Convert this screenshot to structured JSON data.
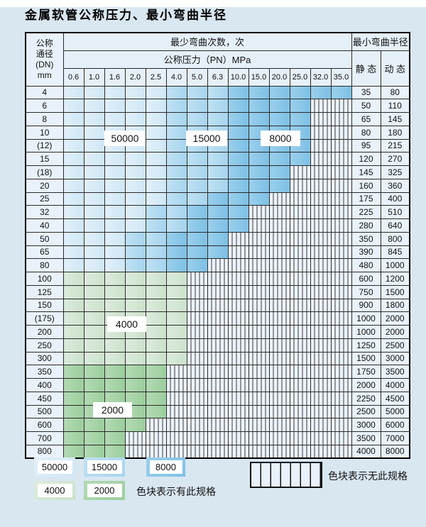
{
  "title": "金属软管公称压力、最小弯曲半径",
  "colors": {
    "page_bg": "#d9e7f1",
    "label_cell_bg": "#e9f2fa",
    "header_bg": "#e6f0f8",
    "hatch_bg": "#ecf3fa",
    "hatch_line": "#3a3a3a",
    "shades": {
      "L": [
        "#e2f0fa",
        "#cfe7f5"
      ],
      "M": [
        "#c0e1f3",
        "#a6d5ee"
      ],
      "D": [
        "#9bd0ec",
        "#7ec0e5"
      ],
      "g": [
        "#dcebdc",
        "#cce2cc"
      ],
      "G": [
        "#b4dab4",
        "#9bce9d"
      ]
    }
  },
  "table": {
    "header": {
      "dn_lines": "公称\n通径\n(DN)\nmm",
      "bend_times": "最少弯曲次数，次",
      "pressure": "公称压力（PN）MPa",
      "radius": "最小弯曲半径",
      "static": "静 态",
      "dynamic": "动 态",
      "pressure_values": [
        "0.6",
        "1.0",
        "1.6",
        "2.0",
        "2.5",
        "4.0",
        "5.0",
        "6.3",
        "10.0",
        "15.0",
        "20.0",
        "25.0",
        "32.0",
        "35.0"
      ]
    },
    "rows": [
      {
        "dn": "4",
        "cells": "LLLLLMMMDDDDDD",
        "static": "35",
        "dynamic": "80"
      },
      {
        "dn": "6",
        "cells": "LLLLLMMMDDDDxx",
        "static": "50",
        "dynamic": "110"
      },
      {
        "dn": "8",
        "cells": "LLLLLMMMDDDDxx",
        "static": "65",
        "dynamic": "145"
      },
      {
        "dn": "10",
        "cells": "LLLLLMMMDDDDxx",
        "static": "80",
        "dynamic": "180"
      },
      {
        "dn": "(12)",
        "cells": "LLLLLMMMDDDDxx",
        "static": "95",
        "dynamic": "215"
      },
      {
        "dn": "15",
        "cells": "LLLLLMMMDDDDxx",
        "static": "120",
        "dynamic": "270"
      },
      {
        "dn": "(18)",
        "cells": "LLLLLMMMDDDxxx",
        "static": "145",
        "dynamic": "325"
      },
      {
        "dn": "20",
        "cells": "LLLLLMMMDDDxxx",
        "static": "160",
        "dynamic": "360"
      },
      {
        "dn": "25",
        "cells": "LLLLLMMDDDxxxx",
        "static": "175",
        "dynamic": "400"
      },
      {
        "dn": "32",
        "cells": "LLLLMMDDDxxxxx",
        "static": "225",
        "dynamic": "510"
      },
      {
        "dn": "40",
        "cells": "LLLLMMDDDxxxxx",
        "static": "280",
        "dynamic": "640"
      },
      {
        "dn": "50",
        "cells": "LLLMMDDDxxxxxx",
        "static": "350",
        "dynamic": "800"
      },
      {
        "dn": "65",
        "cells": "LLLMMDDDxxxxxx",
        "static": "390",
        "dynamic": "845"
      },
      {
        "dn": "80",
        "cells": "LLLMMDDxxxxxxx",
        "static": "480",
        "dynamic": "1000"
      },
      {
        "dn": "100",
        "cells": "ggggggxxxxxxxx",
        "static": "600",
        "dynamic": "1200"
      },
      {
        "dn": "125",
        "cells": "ggggggxxxxxxxx",
        "static": "750",
        "dynamic": "1500"
      },
      {
        "dn": "150",
        "cells": "ggggggxxxxxxxx",
        "static": "900",
        "dynamic": "1800"
      },
      {
        "dn": "(175)",
        "cells": "ggggggxxxxxxxx",
        "static": "1000",
        "dynamic": "2000"
      },
      {
        "dn": "200",
        "cells": "ggggggxxxxxxxx",
        "static": "1000",
        "dynamic": "2000"
      },
      {
        "dn": "250",
        "cells": "ggggggxxxxxxxx",
        "static": "1250",
        "dynamic": "2500"
      },
      {
        "dn": "300",
        "cells": "ggggggxxxxxxxx",
        "static": "1500",
        "dynamic": "3000"
      },
      {
        "dn": "350",
        "cells": "GGGGGxxxxxxxxx",
        "static": "1750",
        "dynamic": "3500"
      },
      {
        "dn": "400",
        "cells": "GGGGGxxxxxxxxx",
        "static": "2000",
        "dynamic": "4000"
      },
      {
        "dn": "450",
        "cells": "GGGGGxxxxxxxxx",
        "static": "2250",
        "dynamic": "4500"
      },
      {
        "dn": "500",
        "cells": "GGGGGxxxxxxxxx",
        "static": "2500",
        "dynamic": "5000"
      },
      {
        "dn": "600",
        "cells": "GGGGxxxxxxxxxx",
        "static": "3000",
        "dynamic": "6000"
      },
      {
        "dn": "700",
        "cells": "GGGxxxxxxxxxxx",
        "static": "3500",
        "dynamic": "7000"
      },
      {
        "dn": "800",
        "cells": "GGGxxxxxxxxxxx",
        "static": "4000",
        "dynamic": "8000"
      }
    ]
  },
  "region_labels": {
    "r50000": "50000",
    "r15000": "15000",
    "r8000": "8000",
    "r4000": "4000",
    "r2000": "2000"
  },
  "legend": {
    "swatches": [
      {
        "label": "50000",
        "shade": "L"
      },
      {
        "label": "15000",
        "shade": "M"
      },
      {
        "label": "8000",
        "shade": "D"
      },
      {
        "label": "4000",
        "shade": "g"
      },
      {
        "label": "2000",
        "shade": "G"
      }
    ],
    "available_note": "色块表示有此规格",
    "unavailable_note": "色块表示无此规格"
  }
}
